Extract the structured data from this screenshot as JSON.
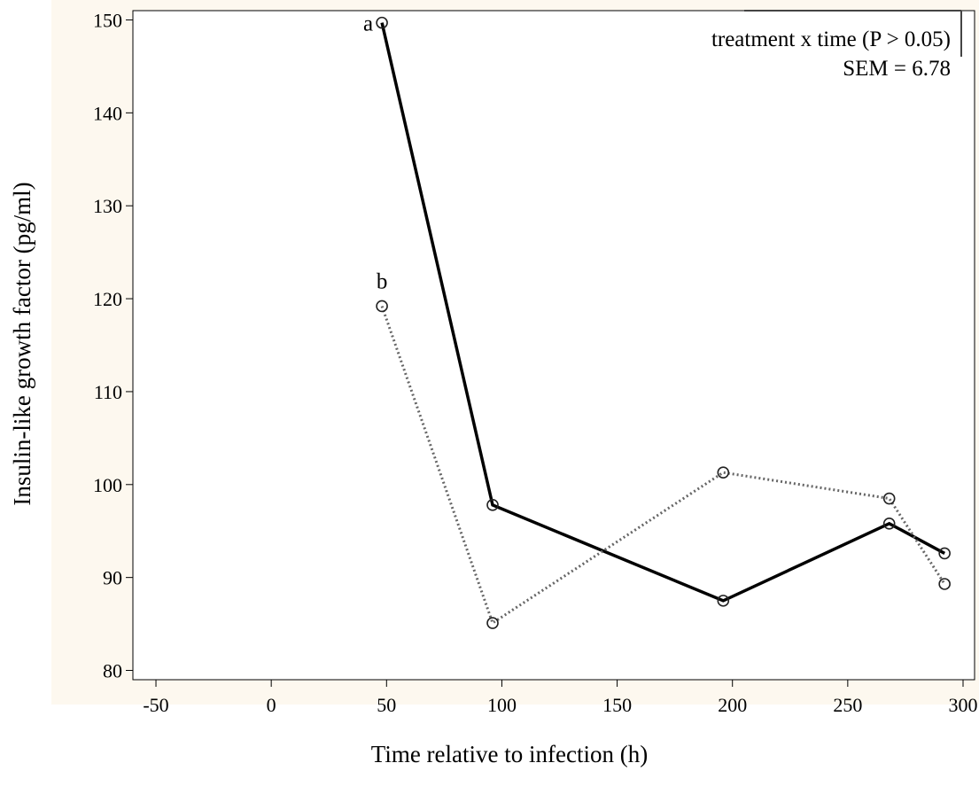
{
  "chart_data": {
    "type": "line",
    "title": "",
    "xlabel": "Time relative to infection (h)",
    "ylabel": "Insulin-like growth factor (pg/ml)",
    "xlim": [
      -60,
      305
    ],
    "ylim": [
      79,
      151
    ],
    "xticks": [
      -50,
      0,
      50,
      100,
      150,
      200,
      250,
      300
    ],
    "yticks": [
      80,
      90,
      100,
      110,
      120,
      130,
      140,
      150
    ],
    "grid": false,
    "legend": "none",
    "annotation_lines": [
      "treatment x time (P > 0.05)",
      "SEM  = 6.78"
    ],
    "series": [
      {
        "style": "solid",
        "color": "#000000",
        "x": [
          48,
          96,
          196,
          268,
          292
        ],
        "y": [
          149.7,
          97.8,
          87.5,
          95.8,
          92.6
        ]
      },
      {
        "style": "dotted",
        "color": "#666666",
        "x": [
          48,
          96,
          196,
          268,
          292
        ],
        "y": [
          119.2,
          85.1,
          101.3,
          98.5,
          89.3
        ]
      }
    ],
    "point_labels": [
      {
        "text": "a",
        "series": 0,
        "index": 0
      },
      {
        "text": "b",
        "series": 1,
        "index": 0
      }
    ]
  },
  "colors": {
    "background_panel": "#fdf8ef",
    "plot_background": "#ffffff",
    "axis": "#000000"
  }
}
